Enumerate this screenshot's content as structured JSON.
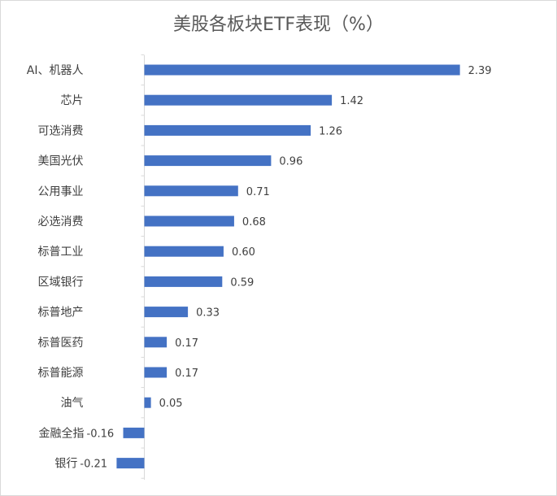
{
  "chart_data": {
    "type": "bar",
    "orientation": "horizontal",
    "title": "美股各板块ETF表现（%）",
    "categories": [
      "AI、机器人",
      "芯片",
      "可选消费",
      "美国光伏",
      "公用事业",
      "必选消费",
      "标普工业",
      "区域银行",
      "标普地产",
      "标普医药",
      "标普能源",
      "油气",
      "金融全指",
      "银行"
    ],
    "values": [
      2.39,
      1.42,
      1.26,
      0.96,
      0.71,
      0.68,
      0.6,
      0.59,
      0.33,
      0.17,
      0.17,
      0.05,
      -0.16,
      -0.21
    ],
    "value_labels": [
      "2.39",
      "1.42",
      "1.26",
      "0.96",
      "0.71",
      "0.68",
      "0.60",
      "0.59",
      "0.33",
      "0.17",
      "0.17",
      "0.05",
      "-0.16",
      "-0.21"
    ],
    "bar_color": "#4472c4",
    "xlabel": "",
    "ylabel": "",
    "legend": "none",
    "grid": false
  }
}
